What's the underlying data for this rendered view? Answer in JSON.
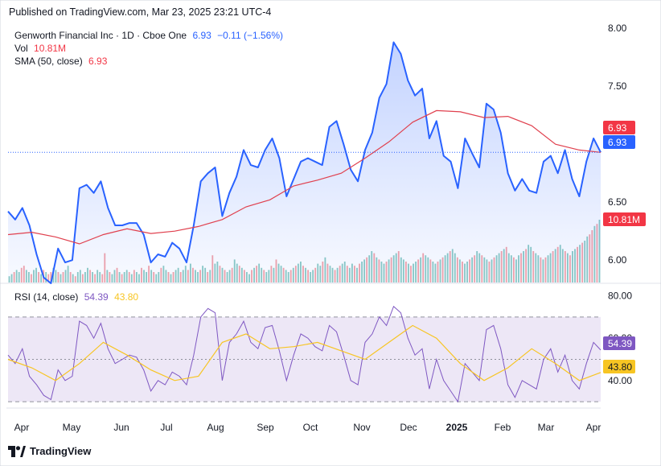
{
  "published": "Published on TradingView.com, Mar 23, 2025 23:21 UTC-4",
  "legend": {
    "symbol": "Genworth Financial Inc · 1D · Cboe One",
    "last": "6.93",
    "change": "−0.11 (−1.56%)",
    "vol_label": "Vol",
    "vol_value": "10.81M",
    "sma_label": "SMA (50, close)",
    "sma_value": "6.93",
    "rsi_label": "RSI (14, close)",
    "rsi_value": "54.39",
    "rsi_ma_value": "43.80"
  },
  "badges": {
    "sma": "6.93",
    "price": "6.93",
    "volume": "10.81M",
    "rsi": "54.39",
    "rsi_ma": "43.80"
  },
  "footer": {
    "brand": "TradingView"
  },
  "colors": {
    "price_line": "#2962ff",
    "sma_line": "#e0404e",
    "vol_up": "#8ccbc4",
    "vol_down": "#f4a3a8",
    "rsi_line": "#7e57c2",
    "rsi_ma": "#f7c523",
    "rsi_band": "#ede7f6"
  },
  "chart_data": [
    {
      "type": "line",
      "title": "Genworth Financial Inc · 1D · Cboe One",
      "x_ticks": [
        "Apr",
        "May",
        "Jun",
        "Jul",
        "Aug",
        "Sep",
        "Oct",
        "Nov",
        "Dec",
        "2025",
        "Feb",
        "Mar",
        "Apr"
      ],
      "y_ticks": [
        "8.00",
        "7.50",
        "6.50",
        "6.00"
      ],
      "ylim": [
        5.8,
        8.05
      ],
      "series": [
        {
          "name": "GNW",
          "x": [
            0,
            3,
            6,
            9,
            12,
            15,
            18,
            21,
            24,
            27,
            30,
            33,
            36,
            39,
            42,
            45,
            48,
            51,
            54,
            57,
            60,
            63,
            66,
            69,
            72,
            75,
            78,
            81,
            84,
            87,
            90,
            93,
            96,
            99,
            102,
            105,
            108,
            111,
            114,
            117,
            120,
            123,
            126,
            129,
            132,
            135,
            138,
            141,
            144,
            147,
            150,
            153,
            156,
            159,
            162,
            165,
            168,
            171,
            174,
            177,
            180,
            183,
            186,
            189,
            192,
            195,
            198,
            201,
            204,
            207,
            210,
            213,
            216,
            219,
            222,
            225,
            228,
            231,
            234,
            237,
            240,
            243,
            246,
            249
          ],
          "values": [
            6.42,
            6.35,
            6.45,
            6.3,
            6.05,
            5.85,
            5.8,
            6.1,
            5.98,
            6.0,
            6.62,
            6.65,
            6.58,
            6.68,
            6.45,
            6.3,
            6.3,
            6.32,
            6.32,
            6.22,
            5.98,
            6.05,
            6.03,
            6.15,
            6.1,
            5.98,
            6.3,
            6.68,
            6.75,
            6.8,
            6.38,
            6.58,
            6.72,
            6.95,
            6.82,
            6.8,
            6.95,
            7.05,
            6.88,
            6.55,
            6.7,
            6.85,
            6.88,
            6.85,
            6.82,
            7.15,
            7.2,
            7.0,
            6.78,
            6.68,
            6.95,
            7.1,
            7.4,
            7.52,
            7.88,
            7.78,
            7.55,
            7.42,
            7.48,
            7.05,
            7.2,
            6.9,
            6.85,
            6.62,
            7.05,
            6.92,
            6.8,
            7.35,
            7.3,
            7.1,
            6.75,
            6.6,
            6.7,
            6.6,
            6.58,
            6.85,
            6.9,
            6.75,
            6.95,
            6.7,
            6.55,
            6.85,
            7.05,
            6.93
          ],
          "last": 6.93
        },
        {
          "name": "SMA (50, close)",
          "x": [
            0,
            10,
            20,
            30,
            40,
            50,
            60,
            70,
            80,
            90,
            100,
            110,
            120,
            130,
            140,
            150,
            160,
            170,
            180,
            190,
            200,
            210,
            220,
            230,
            240,
            249
          ],
          "values": [
            6.22,
            6.24,
            6.2,
            6.14,
            6.22,
            6.27,
            6.23,
            6.25,
            6.29,
            6.35,
            6.46,
            6.52,
            6.64,
            6.69,
            6.75,
            6.88,
            7.02,
            7.19,
            7.29,
            7.28,
            7.23,
            7.24,
            7.16,
            7.0,
            6.95,
            6.93
          ],
          "last": 6.93
        }
      ]
    },
    {
      "type": "bar",
      "title": "Vol",
      "last_label": "10.81M",
      "values": [
        3,
        4,
        5,
        6,
        5,
        7,
        8,
        6,
        5,
        4,
        6,
        7,
        5,
        4,
        6,
        5,
        4,
        5,
        7,
        6,
        5,
        4,
        5,
        6,
        8,
        5,
        4,
        3,
        5,
        6,
        4,
        5,
        7,
        6,
        5,
        4,
        6,
        5,
        4,
        14,
        6,
        5,
        4,
        6,
        7,
        5,
        4,
        5,
        6,
        5,
        4,
        6,
        5,
        4,
        7,
        6,
        5,
        8,
        6,
        5,
        4,
        5,
        7,
        8,
        6,
        5,
        4,
        5,
        6,
        7,
        5,
        6,
        8,
        6,
        9,
        7,
        6,
        5,
        6,
        8,
        7,
        5,
        6,
        13,
        9,
        10,
        8,
        7,
        6,
        5,
        6,
        7,
        11,
        9,
        8,
        7,
        6,
        5,
        4,
        6,
        7,
        8,
        9,
        7,
        6,
        5,
        6,
        8,
        7,
        11,
        9,
        8,
        7,
        6,
        5,
        6,
        7,
        8,
        9,
        10,
        8,
        7,
        6,
        5,
        6,
        7,
        9,
        8,
        10,
        12,
        9,
        8,
        7,
        6,
        7,
        8,
        9,
        10,
        8,
        7,
        9,
        8,
        7,
        9,
        10,
        11,
        12,
        13,
        15,
        14,
        12,
        11,
        10,
        9,
        10,
        11,
        12,
        13,
        14,
        15,
        12,
        11,
        10,
        9,
        8,
        9,
        10,
        11,
        12,
        14,
        13,
        12,
        11,
        10,
        9,
        10,
        11,
        12,
        13,
        14,
        15,
        16,
        14,
        12,
        11,
        10,
        9,
        10,
        11,
        12,
        13,
        15,
        14,
        13,
        12,
        11,
        10,
        11,
        12,
        13,
        14,
        15,
        16,
        17,
        14,
        13,
        12,
        11,
        13,
        14,
        15,
        16,
        18,
        17,
        15,
        14,
        13,
        12,
        11,
        12,
        13,
        14,
        15,
        16,
        17,
        18,
        16,
        15,
        14,
        13,
        15,
        16,
        17,
        18,
        19,
        20,
        22,
        23,
        25,
        27,
        28,
        30
      ],
      "down": [
        0,
        0,
        1,
        0,
        0,
        1,
        1,
        0,
        0,
        1,
        0,
        0,
        1,
        0,
        1,
        0,
        1,
        1,
        0,
        0,
        1,
        0,
        1,
        0,
        0,
        1,
        0,
        1,
        0,
        0,
        1,
        0,
        0,
        1,
        0,
        1,
        0,
        0,
        1,
        1,
        0,
        1,
        0,
        0,
        1,
        0,
        1,
        0,
        0,
        1,
        0,
        1,
        0,
        0,
        1,
        0,
        0,
        1,
        0,
        1,
        0,
        0,
        1,
        0,
        0,
        1,
        0,
        1,
        0,
        0,
        1,
        0,
        0,
        1,
        0,
        1,
        0,
        0,
        1,
        0,
        0,
        1,
        0,
        1,
        0,
        0,
        1,
        0,
        1,
        0,
        0,
        1,
        0,
        0,
        1,
        0,
        1,
        0,
        0,
        1,
        0,
        1,
        0,
        0,
        1,
        0,
        0,
        1,
        0,
        1,
        0,
        0,
        1,
        0,
        0,
        1,
        0,
        1,
        0,
        0,
        1,
        0,
        1,
        0,
        0,
        1,
        0,
        0,
        1,
        0,
        1,
        0,
        0,
        1,
        0,
        1,
        0,
        0,
        1,
        0,
        0,
        1,
        0,
        1,
        0,
        0,
        1,
        0,
        0,
        1,
        0,
        1,
        0,
        0,
        1,
        0,
        1,
        0,
        0,
        1,
        0,
        0,
        1,
        0,
        1,
        0,
        0,
        1,
        0,
        1,
        0,
        0,
        1,
        0,
        0,
        1,
        0,
        1,
        0,
        0,
        1,
        0,
        0,
        1,
        0,
        1,
        0,
        0,
        1,
        0,
        1,
        0,
        0,
        1,
        0,
        0,
        1,
        0,
        1,
        0,
        0,
        1,
        0,
        1,
        0,
        0,
        1,
        0,
        0,
        1,
        0,
        1,
        0,
        0,
        1,
        0,
        0,
        1,
        0,
        1,
        0,
        0,
        1,
        0,
        1,
        0,
        0,
        1,
        0,
        1,
        0,
        0,
        1,
        0,
        1,
        0,
        0,
        1,
        1,
        0,
        1,
        0,
        1,
        0,
        1,
        0,
        1,
        1
      ]
    },
    {
      "type": "line",
      "title": "RSI (14, close)",
      "y_ticks": [
        "80.00",
        "60.00",
        "40.00"
      ],
      "ylim": [
        27,
        84
      ],
      "bands": [
        30,
        70
      ],
      "series": [
        {
          "name": "RSI",
          "x": [
            0,
            3,
            6,
            9,
            12,
            15,
            18,
            21,
            24,
            27,
            30,
            33,
            36,
            39,
            42,
            45,
            48,
            51,
            54,
            57,
            60,
            63,
            66,
            69,
            72,
            75,
            78,
            81,
            84,
            87,
            90,
            93,
            96,
            99,
            102,
            105,
            108,
            111,
            114,
            117,
            120,
            123,
            126,
            129,
            132,
            135,
            138,
            141,
            144,
            147,
            150,
            153,
            156,
            159,
            162,
            165,
            168,
            171,
            174,
            177,
            180,
            183,
            186,
            189,
            192,
            195,
            198,
            201,
            204,
            207,
            210,
            213,
            216,
            219,
            222,
            225,
            228,
            231,
            234,
            237,
            240,
            243,
            246,
            249
          ],
          "values": [
            52,
            48,
            55,
            42,
            38,
            33,
            31,
            45,
            40,
            42,
            68,
            66,
            60,
            67,
            55,
            48,
            50,
            52,
            51,
            45,
            35,
            40,
            38,
            44,
            42,
            38,
            52,
            70,
            74,
            72,
            40,
            58,
            62,
            68,
            58,
            55,
            65,
            66,
            54,
            40,
            52,
            62,
            60,
            56,
            54,
            66,
            63,
            52,
            40,
            38,
            58,
            62,
            70,
            66,
            75,
            72,
            60,
            52,
            55,
            36,
            50,
            40,
            35,
            30,
            48,
            44,
            40,
            64,
            66,
            55,
            38,
            32,
            40,
            38,
            36,
            50,
            55,
            44,
            52,
            40,
            36,
            48,
            58,
            54.39
          ]
        },
        {
          "name": "RSI MA",
          "x": [
            0,
            10,
            20,
            30,
            40,
            50,
            60,
            70,
            80,
            90,
            100,
            110,
            120,
            130,
            140,
            150,
            160,
            170,
            180,
            190,
            200,
            210,
            220,
            230,
            240,
            249
          ],
          "values": [
            50,
            46,
            40,
            48,
            58,
            52,
            45,
            40,
            42,
            58,
            62,
            55,
            56,
            58,
            54,
            50,
            58,
            66,
            60,
            48,
            40,
            46,
            55,
            48,
            40,
            43.8
          ]
        }
      ]
    }
  ]
}
